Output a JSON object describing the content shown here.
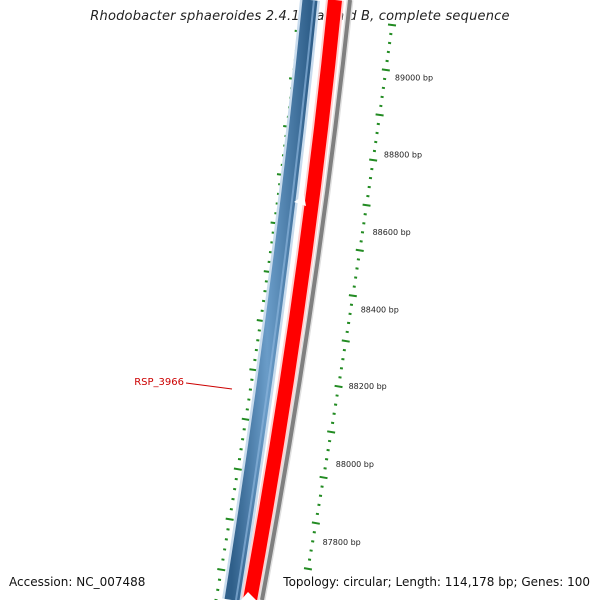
{
  "title": "Rhodobacter sphaeroides 2.4.1 plasmid B, complete sequence",
  "footer": {
    "accession": "Accession: NC_007488",
    "summary": "Topology: circular; Length: 114,178 bp; Genes: 100"
  },
  "scale_labels": [
    "89000 bp",
    "88800 bp",
    "88600 bp",
    "88400 bp",
    "88200 bp",
    "88000 bp",
    "87800 bp"
  ],
  "gene_label": "RSP_3966",
  "colors": {
    "forward_strand": "#4682b4",
    "reverse_strand": "#ff0000",
    "backbone": "#808080",
    "ticks": "#228b22",
    "label": "#cc0000"
  }
}
